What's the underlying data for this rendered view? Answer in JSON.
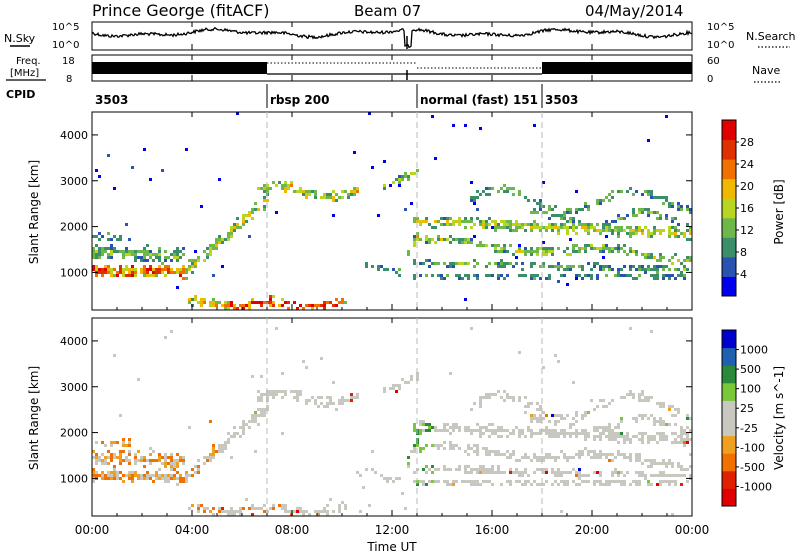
{
  "header": {
    "title": "Prince George (fitACF)",
    "beam": "Beam 07",
    "date": "04/May/2014"
  },
  "top_panels": {
    "nsky_label": "N.Sky",
    "nsearch_label": "N.Search",
    "freq_label_1": "Freq.",
    "freq_label_2": "[MHz]",
    "nave_label": "Nave",
    "cpid_label": "CPID",
    "left_ticks_nsky": [
      "10^5",
      "10^0"
    ],
    "right_ticks_nsky": [
      "10^5",
      "10^0"
    ],
    "left_ticks_freq": [
      "18",
      "8"
    ],
    "right_ticks_nave": [
      "60",
      "0"
    ]
  },
  "cpid_segments": [
    {
      "label": "3503",
      "start_hour": 0
    },
    {
      "label": "rbsp 200",
      "start_hour": 7
    },
    {
      "label": "normal (fast) 151",
      "start_hour": 13
    },
    {
      "label": "3503",
      "start_hour": 18
    }
  ],
  "colors": {
    "power": [
      "#0000ee",
      "#2a52b0",
      "#3a8f6a",
      "#6eb74a",
      "#b8d620",
      "#f0b800",
      "#f07000",
      "#e03000",
      "#e00000"
    ],
    "velocity": [
      "#0000cc",
      "#2060b0",
      "#2a8a3a",
      "#78c83a",
      "#c8c8c0",
      "#c8c8c0",
      "#f0a020",
      "#f07000",
      "#e02000",
      "#e00000"
    ]
  },
  "chart_data": [
    {
      "type": "heatmap",
      "name": "Power",
      "xlabel": "Time UT",
      "ylabel": "Slant Range [km]",
      "x_ticks": [
        "00:00",
        "04:00",
        "08:00",
        "12:00",
        "16:00",
        "20:00",
        "00:00"
      ],
      "x_range_hours": [
        0,
        24
      ],
      "ylim": [
        180,
        4500
      ],
      "y_ticks": [
        1000,
        2000,
        3000,
        4000
      ],
      "colorbar_label": "Power [dB]",
      "colorbar_ticks": [
        "4",
        "8",
        "12",
        "16",
        "20",
        "24",
        "28"
      ],
      "colorbar_range": [
        0,
        30
      ]
    },
    {
      "type": "heatmap",
      "name": "Velocity",
      "xlabel": "Time UT",
      "ylabel": "Slant Range [km]",
      "x_ticks": [
        "00:00",
        "04:00",
        "08:00",
        "12:00",
        "16:00",
        "20:00",
        "00:00"
      ],
      "x_range_hours": [
        0,
        24
      ],
      "ylim": [
        180,
        4500
      ],
      "y_ticks": [
        1000,
        2000,
        3000,
        4000
      ],
      "colorbar_label": "Velocity [m s^-1]",
      "colorbar_ticks": [
        "1000",
        "500",
        "100",
        "25",
        "-25",
        "-100",
        "-500",
        "-1000"
      ],
      "colorbar_range": [
        -1000,
        1000
      ]
    }
  ]
}
